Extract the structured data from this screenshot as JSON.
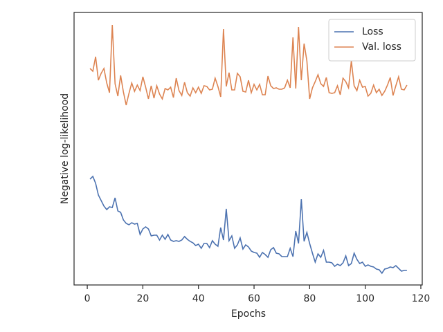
{
  "chart_data": {
    "type": "line",
    "xlabel": "Epochs",
    "ylabel": "Negative log-likelihood",
    "x": [
      1,
      2,
      3,
      4,
      5,
      6,
      7,
      8,
      9,
      10,
      11,
      12,
      13,
      14,
      15,
      16,
      17,
      18,
      19,
      20,
      21,
      22,
      23,
      24,
      25,
      26,
      27,
      28,
      29,
      30,
      31,
      32,
      33,
      34,
      35,
      36,
      37,
      38,
      39,
      40,
      41,
      42,
      43,
      44,
      45,
      46,
      47,
      48,
      49,
      50,
      51,
      52,
      53,
      54,
      55,
      56,
      57,
      58,
      59,
      60,
      61,
      62,
      63,
      64,
      65,
      66,
      67,
      68,
      69,
      70,
      71,
      72,
      73,
      74,
      75,
      76,
      77,
      78,
      79,
      80,
      81,
      82,
      83,
      84,
      85,
      86,
      87,
      88,
      89,
      90,
      91,
      92,
      93,
      94,
      95,
      96,
      97,
      98,
      99,
      100,
      101,
      102,
      103,
      104,
      105,
      106,
      107,
      108,
      109,
      110,
      111,
      112,
      113,
      114,
      115
    ],
    "series": [
      {
        "name": "Loss",
        "color": "#4c72b0",
        "values": [
          153,
          157,
          147,
          130,
          122,
          114,
          109,
          113,
          112,
          126,
          107,
          105,
          94,
          89,
          87,
          90,
          88,
          89,
          73,
          81,
          84,
          81,
          71,
          72,
          72,
          65,
          72,
          66,
          73,
          65,
          63,
          64,
          63,
          65,
          70,
          66,
          63,
          61,
          57,
          59,
          53,
          60,
          60,
          54,
          64,
          59,
          56,
          83,
          65,
          110,
          64,
          71,
          53,
          58,
          68,
          52,
          58,
          55,
          49,
          47,
          46,
          40,
          47,
          44,
          40,
          51,
          54,
          46,
          45,
          41,
          41,
          41,
          53,
          41,
          78,
          60,
          124,
          63,
          76,
          60,
          46,
          33,
          45,
          40,
          50,
          33,
          33,
          32,
          27,
          30,
          28,
          32,
          42,
          28,
          31,
          46,
          37,
          31,
          33,
          27,
          29,
          27,
          26,
          23,
          22,
          17,
          23,
          24,
          26,
          25,
          28,
          24,
          20,
          21,
          21
        ]
      },
      {
        "name": "Val. loss",
        "color": "#dd8452",
        "values": [
          313,
          309,
          330,
          296,
          306,
          313,
          292,
          278,
          376,
          291,
          273,
          303,
          279,
          260,
          277,
          292,
          280,
          289,
          281,
          301,
          286,
          269,
          288,
          270,
          288,
          276,
          269,
          284,
          282,
          286,
          271,
          299,
          281,
          274,
          293,
          278,
          273,
          285,
          278,
          286,
          277,
          288,
          287,
          282,
          283,
          299,
          287,
          272,
          370,
          287,
          307,
          282,
          282,
          306,
          301,
          280,
          279,
          296,
          278,
          290,
          282,
          290,
          275,
          275,
          302,
          288,
          284,
          285,
          283,
          283,
          285,
          296,
          285,
          358,
          284,
          373,
          296,
          349,
          324,
          269,
          285,
          294,
          304,
          291,
          287,
          300,
          278,
          277,
          278,
          288,
          275,
          299,
          294,
          285,
          324,
          288,
          281,
          296,
          286,
          287,
          273,
          277,
          289,
          278,
          283,
          274,
          280,
          289,
          300,
          274,
          288,
          301,
          283,
          282,
          289
        ]
      }
    ],
    "xlim": [
      -4.75,
      120.5
    ],
    "xticks": [
      0,
      20,
      40,
      60,
      80,
      100,
      120
    ],
    "ylim": [
      0,
      394
    ],
    "legend": "upper right"
  }
}
